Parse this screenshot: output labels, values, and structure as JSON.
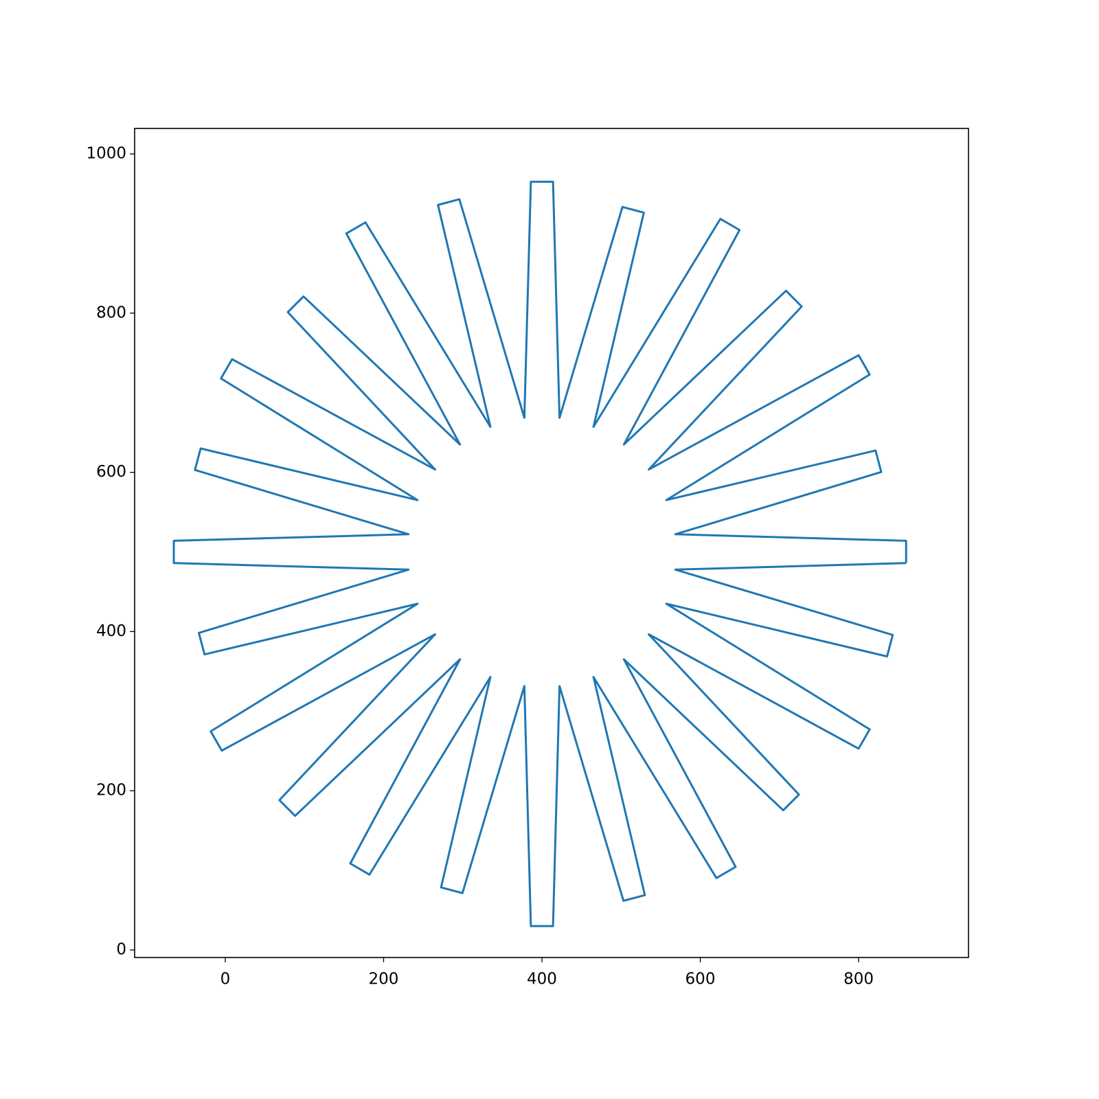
{
  "chart_data": {
    "type": "line",
    "xlim": [
      -114.5,
      938.8
    ],
    "ylim": [
      -9.5,
      1032
    ],
    "xticks": [
      0,
      200,
      400,
      600,
      800
    ],
    "yticks": [
      0,
      200,
      400,
      600,
      800,
      1000
    ],
    "series": [
      {
        "color": "#1f77b4",
        "x": [
          860,
          860,
          568.5,
          828.6,
          821.4,
          557.1,
          814,
          800,
          534.9,
          728.1,
          708.3,
          503.5,
          649.6,
          625.4,
          465.1,
          528.7,
          501.7,
          422.2,
          414,
          386,
          377.8,
          295.7,
          268.7,
          334.9,
          177.1,
          152.9,
          296.5,
          98.8,
          79,
          265.1,
          8.6,
          -5.4,
          242.9,
          -31.1,
          -38.3,
          231.5,
          -65,
          -65,
          231.5,
          -33.4,
          -26.2,
          242.9,
          -18.4,
          -4.4,
          265.1,
          68.4,
          88.2,
          296.5,
          157.9,
          182.1,
          334.9,
          272.6,
          299.6,
          377.8,
          386,
          414,
          422.2,
          503,
          530,
          465.1,
          620.4,
          644.6,
          503.5,
          704.8,
          724.6,
          534.9,
          800,
          814,
          557.1,
          835.9,
          843.1,
          568.5,
          860
        ],
        "y": [
          486,
          514,
          522.2,
          600.4,
          627.4,
          565.1,
          722.9,
          747.1,
          603.5,
          808.3,
          828.1,
          634.9,
          904.4,
          918.4,
          657.1,
          926.2,
          933.4,
          668.5,
          965,
          965,
          668.5,
          943.1,
          935.9,
          657.1,
          914,
          900,
          634.9,
          821,
          801.2,
          603.5,
          742.1,
          717.9,
          565.1,
          630,
          603,
          522.2,
          514,
          486,
          477.8,
          398.3,
          371.3,
          434.9,
          274.6,
          250.4,
          396.5,
          188.2,
          168.4,
          365.1,
          108.6,
          94.6,
          342.9,
          78.6,
          71.4,
          331.5,
          30,
          30,
          331.5,
          61.7,
          68.9,
          342.9,
          90.3,
          104.3,
          365.1,
          175.4,
          195.2,
          396.5,
          252.9,
          277.1,
          434.9,
          368.7,
          395.7,
          477.8,
          486
        ]
      }
    ]
  }
}
